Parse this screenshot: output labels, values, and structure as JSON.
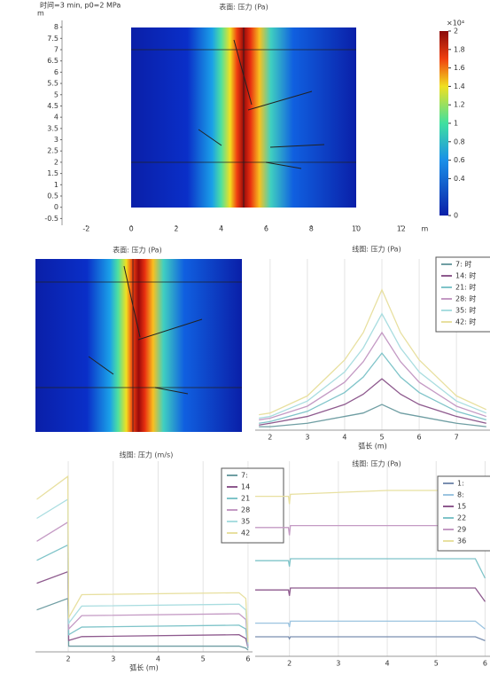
{
  "chart_data": [
    {
      "type": "heatmap",
      "title": "表面: 压力 (Pa)",
      "subtitle": "时间=3 min, p0=2 MPa",
      "x_unit": "m",
      "y_unit": "m",
      "xlim": [
        -3,
        12.5
      ],
      "ylim": [
        -0.8,
        8.3
      ],
      "xticks": [
        -2,
        0,
        2,
        4,
        6,
        8,
        10,
        12
      ],
      "yticks": [
        -0.5,
        0,
        0.5,
        1,
        1.5,
        2,
        2.5,
        3,
        3.5,
        4,
        4.5,
        5,
        5.5,
        6,
        6.5,
        7,
        7.5,
        8
      ],
      "clim": [
        0,
        2
      ],
      "cticks": [
        0,
        0.4,
        0.6,
        0.8,
        1,
        1.2,
        1.4,
        1.6,
        1.8,
        2
      ],
      "cbar_label": "×10⁴"
    },
    {
      "type": "heatmap",
      "title": "表面: 压力 (Pa)"
    },
    {
      "type": "line",
      "title": "线图: 压力 (Pa)",
      "xlabel": "弧长 (m)",
      "xlim": [
        1.6,
        7.9
      ],
      "ylim": [
        0,
        100
      ],
      "xticks": [
        2,
        3,
        4,
        5,
        6,
        7
      ],
      "grid": true,
      "x": [
        1.7,
        2,
        3,
        4,
        4.5,
        5,
        5.5,
        6,
        7,
        7.8
      ],
      "series": [
        {
          "name": "7: 时",
          "color": "#6f9ea3",
          "values": [
            2,
            2,
            4,
            8,
            10,
            15,
            10,
            8,
            4,
            2
          ]
        },
        {
          "name": "14: 时",
          "color": "#8e5a8e",
          "values": [
            3,
            4,
            8,
            15,
            21,
            30,
            21,
            15,
            8,
            4
          ]
        },
        {
          "name": "21: 时",
          "color": "#7fc4c9",
          "values": [
            4,
            5,
            11,
            22,
            31,
            45,
            31,
            22,
            11,
            6
          ]
        },
        {
          "name": "28: 时",
          "color": "#c49ac4",
          "values": [
            6,
            7,
            14,
            28,
            40,
            57,
            40,
            28,
            14,
            8
          ]
        },
        {
          "name": "35: 时",
          "color": "#a9dde0",
          "values": [
            7,
            8,
            17,
            34,
            48,
            68,
            48,
            34,
            17,
            10
          ]
        },
        {
          "name": "42: 时",
          "color": "#e8e0a0",
          "values": [
            9,
            10,
            20,
            41,
            57,
            82,
            57,
            41,
            20,
            12
          ]
        }
      ]
    },
    {
      "type": "line",
      "title": "线图: 压力 (m/s)",
      "xlabel": "弧长 (m)",
      "xlim": [
        1.27,
        6.1
      ],
      "ylim": [
        0,
        100
      ],
      "xticks": [
        2,
        3,
        4,
        5,
        6
      ],
      "grid": true,
      "x": [
        1.3,
        1.99,
        2.01,
        2.3,
        5.8,
        5.95,
        6
      ],
      "series": [
        {
          "name": "7:",
          "color": "#6f9ea3",
          "values": [
            22,
            28,
            3,
            3,
            3,
            2,
            1
          ]
        },
        {
          "name": "14",
          "color": "#8e5a8e",
          "values": [
            36,
            42,
            6,
            8,
            9,
            7,
            2
          ]
        },
        {
          "name": "21",
          "color": "#7fc4c9",
          "values": [
            48,
            56,
            9,
            13,
            14,
            12,
            2
          ]
        },
        {
          "name": "28",
          "color": "#c49ac4",
          "values": [
            58,
            68,
            12,
            19,
            20,
            17,
            3
          ]
        },
        {
          "name": "35",
          "color": "#a9dde0",
          "values": [
            70,
            80,
            15,
            24,
            25,
            22,
            4
          ]
        },
        {
          "name": "42",
          "color": "#e8e0a0",
          "values": [
            80,
            92,
            18,
            30,
            31,
            28,
            5
          ]
        }
      ]
    },
    {
      "type": "line",
      "title": "线图: 压力 (Pa)",
      "xlim": [
        1.3,
        6.1
      ],
      "ylim": [
        0,
        100
      ],
      "xticks": [
        2,
        3,
        4,
        5,
        6
      ],
      "grid": true,
      "x": [
        1.3,
        1.98,
        2,
        2.02,
        4,
        5.8,
        6
      ],
      "series": [
        {
          "name": "1:",
          "color": "#7a8fb0",
          "values": [
            10,
            10,
            9,
            10,
            10,
            10,
            8
          ]
        },
        {
          "name": "8:",
          "color": "#9cc4e0",
          "values": [
            17,
            17,
            15,
            18,
            18,
            18,
            14
          ]
        },
        {
          "name": "15",
          "color": "#8e5a8e",
          "values": [
            34,
            34,
            31,
            35,
            35,
            35,
            28
          ]
        },
        {
          "name": "22",
          "color": "#7fc4c9",
          "values": [
            49,
            49,
            46,
            50,
            50,
            50,
            40
          ]
        },
        {
          "name": "29",
          "color": "#c49ac4",
          "values": [
            66,
            66,
            62,
            67,
            67,
            67,
            55
          ]
        },
        {
          "name": "36",
          "color": "#e8e0a0",
          "values": [
            82,
            82,
            78,
            83,
            85,
            85,
            70
          ]
        }
      ]
    }
  ]
}
